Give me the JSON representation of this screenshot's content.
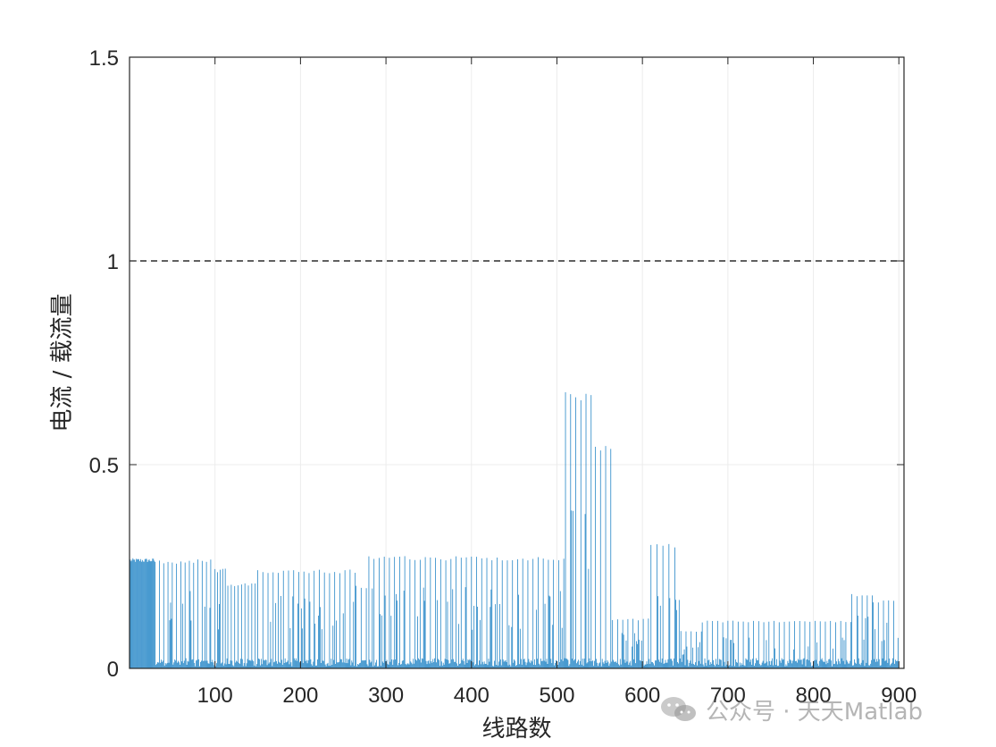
{
  "chart_data": {
    "type": "bar",
    "xlabel": "线路数",
    "ylabel": "电流 / 载流量",
    "xlim": [
      0,
      906
    ],
    "ylim": [
      0,
      1.5
    ],
    "xticks": [
      100,
      200,
      300,
      400,
      500,
      600,
      700,
      800,
      900
    ],
    "xtick_labels": [
      "100",
      "200",
      "300",
      "400",
      "500",
      "600",
      "700",
      "800",
      "900"
    ],
    "yticks": [
      0,
      0.5,
      1,
      1.5
    ],
    "ytick_labels": [
      "0",
      "0.5",
      "1",
      "1.5"
    ],
    "grid": true,
    "reference_line": {
      "y": 1,
      "style": "dashed",
      "color": "#000000"
    },
    "bar_color": "#0072BD",
    "segments": [
      {
        "x_start": 1,
        "x_end": 30,
        "step": 1,
        "peak": 0.265
      },
      {
        "x_start": 30,
        "x_end": 100,
        "step": 5,
        "peak": 0.262
      },
      {
        "x_start": 100,
        "x_end": 115,
        "step": 3,
        "peak": 0.24
      },
      {
        "x_start": 115,
        "x_end": 150,
        "step": 4,
        "peak": 0.205
      },
      {
        "x_start": 150,
        "x_end": 265,
        "step": 6,
        "peak": 0.238
      },
      {
        "x_start": 265,
        "x_end": 280,
        "step": 6,
        "peak": 0.2
      },
      {
        "x_start": 280,
        "x_end": 510,
        "step": 6,
        "peak": 0.27
      },
      {
        "x_start": 510,
        "x_end": 545,
        "step": 6,
        "peak": 0.67
      },
      {
        "x_start": 545,
        "x_end": 565,
        "step": 6,
        "peak": 0.545
      },
      {
        "x_start": 565,
        "x_end": 610,
        "step": 6,
        "peak": 0.12
      },
      {
        "x_start": 610,
        "x_end": 645,
        "step": 7,
        "peak": 0.3
      },
      {
        "x_start": 645,
        "x_end": 670,
        "step": 6,
        "peak": 0.09
      },
      {
        "x_start": 670,
        "x_end": 845,
        "step": 6,
        "peak": 0.115
      },
      {
        "x_start": 845,
        "x_end": 870,
        "step": 6,
        "peak": 0.18
      },
      {
        "x_start": 870,
        "x_end": 900,
        "step": 6,
        "peak": 0.165
      }
    ]
  },
  "watermark": {
    "text": "公众号 · 天天Matlab",
    "icon": "wechat-icon"
  }
}
